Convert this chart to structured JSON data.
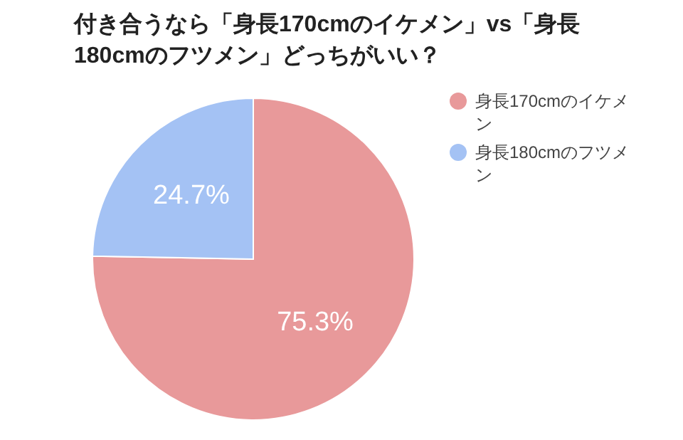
{
  "chart_data": {
    "type": "pie",
    "title": "付き合うなら「身長170cmのイケメン」vs「身長180cmのフツメン」どっちがいい？",
    "categories": [
      "身長170cmのイケメン",
      "身長180cmのフツメン"
    ],
    "values": [
      75.3,
      24.7
    ],
    "colors": [
      "#e8999a",
      "#a4c2f4"
    ],
    "value_labels": [
      "75.3%",
      "24.7%"
    ],
    "legend": "top right"
  }
}
